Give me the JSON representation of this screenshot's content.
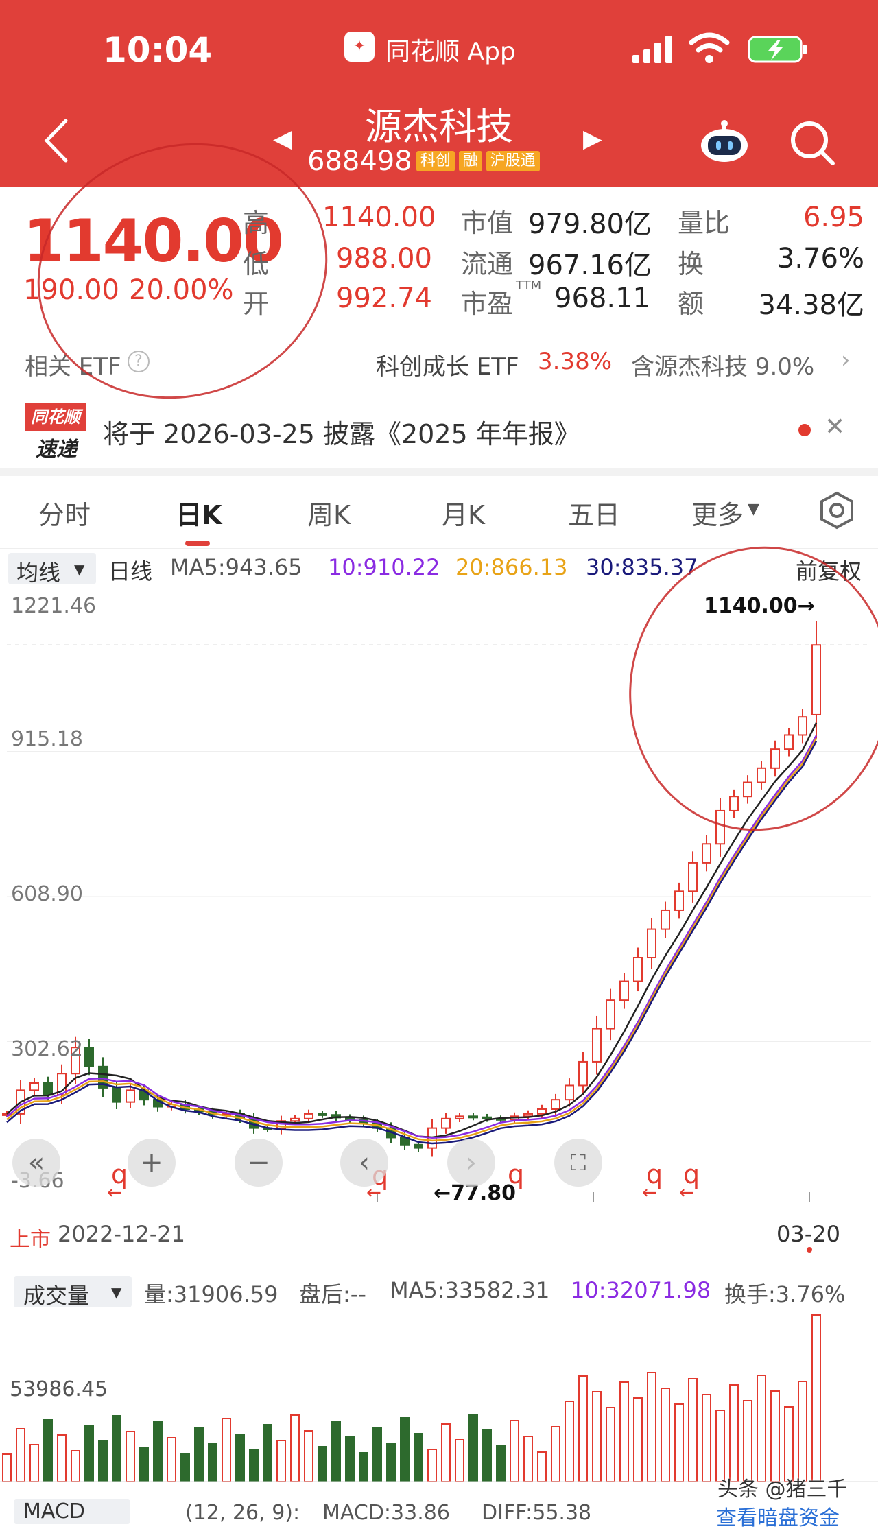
{
  "status_bar": {
    "time": "10:04",
    "app_name": "同花顺 App"
  },
  "stock": {
    "name": "源杰科技",
    "code": "688498",
    "tags": [
      "科创",
      "融",
      "沪股通"
    ]
  },
  "quote": {
    "price": "1140.00",
    "change": "190.00",
    "change_pct": "20.00%",
    "high_label": "高",
    "high": "1140.00",
    "low_label": "低",
    "low": "988.00",
    "open_label": "开",
    "open": "992.74",
    "market_cap_label": "市值",
    "market_cap": "979.80亿",
    "float_cap_label": "流通",
    "float_cap": "967.16亿",
    "pe_label": "市盈",
    "pe_sup": "TTM",
    "pe": "968.11",
    "vol_ratio_label": "量比",
    "vol_ratio": "6.95",
    "turnover_label": "换",
    "turnover": "3.76%",
    "amount_label": "额",
    "amount": "34.38亿"
  },
  "etf": {
    "label": "相关 ETF",
    "name": "科创成长 ETF",
    "pct": "3.38%",
    "holding": "含源杰科技 9.0%"
  },
  "notice": {
    "logo_top": "同花顺",
    "logo_bottom": "速递",
    "text": "将于 2026-03-25 披露《2025 年年报》"
  },
  "tabs": [
    "分时",
    "日K",
    "周K",
    "月K",
    "五日",
    "更多"
  ],
  "active_tab": "日K",
  "ma_bar": {
    "selector": "均线",
    "period": "日线",
    "ma5": "MA5:943.65",
    "ma10": "10:910.22",
    "ma20": "20:866.13",
    "ma30": "30:835.37",
    "adjust": "前复权"
  },
  "price_axis": [
    "1221.46",
    "915.18",
    "608.90",
    "302.62",
    "-3.66"
  ],
  "markers": {
    "max_label": "1140.00→",
    "min_label": "←77.80",
    "listing": "上市",
    "start_date": "2022-12-21",
    "end_date": "03-20"
  },
  "volume_bar": {
    "selector": "成交量",
    "vol": "量:31906.59",
    "after": "盘后:--",
    "ma5": "MA5:33582.31",
    "ma10": "10:32071.98",
    "turnover": "换手:3.76%",
    "axis": "53986.45"
  },
  "macd_bar": {
    "selector": "MACD",
    "params": "(12, 26, 9):",
    "macd": "MACD:33.86",
    "diff": "DIFF:55.38",
    "link": "查看暗盘资金"
  },
  "watermark": "头条 @猪三千",
  "colors": {
    "header_red": "#e0403a",
    "up_red": "#e23a2f",
    "down_green": "#2d6a2d",
    "ma5": "#222222",
    "ma10": "#8a2be2",
    "ma20": "#e8a317",
    "ma30": "#1a1a7a"
  },
  "chart_data": {
    "type": "candlestick",
    "x": [
      "2022-12-21",
      "03-20"
    ],
    "ylim": [
      -3.66,
      1221.46
    ],
    "close_series": [
      150,
      200,
      215,
      190,
      235,
      290,
      250,
      205,
      175,
      200,
      180,
      165,
      170,
      160,
      155,
      148,
      150,
      140,
      120,
      118,
      135,
      140,
      150,
      148,
      142,
      138,
      130,
      120,
      100,
      85,
      78,
      120,
      140,
      145,
      143,
      140,
      138,
      145,
      150,
      160,
      180,
      210,
      260,
      330,
      390,
      430,
      480,
      540,
      580,
      620,
      680,
      720,
      790,
      820,
      850,
      880,
      920,
      950,
      988,
      1140
    ]
  }
}
